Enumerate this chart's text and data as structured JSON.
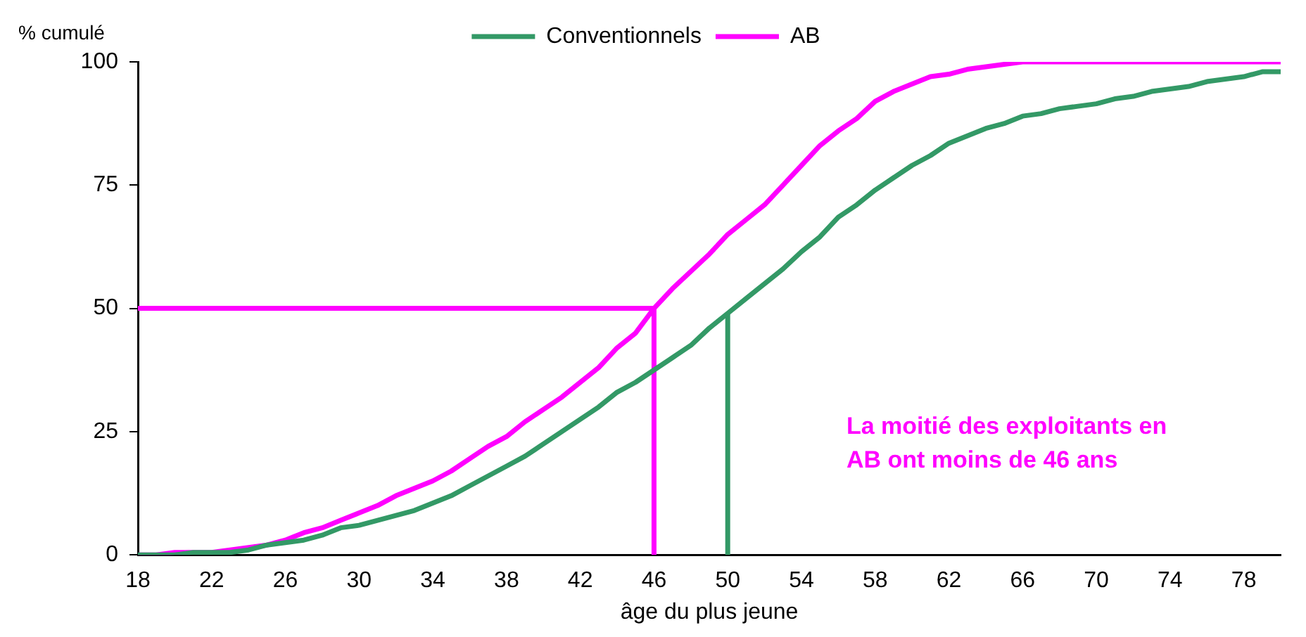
{
  "chart_data": {
    "type": "line",
    "xlabel": "âge du plus jeune",
    "ylabel": "% cumulé",
    "xlim": [
      18,
      80
    ],
    "xticks": [
      18,
      22,
      26,
      30,
      34,
      38,
      42,
      46,
      50,
      54,
      58,
      62,
      66,
      70,
      74,
      78
    ],
    "ylim": [
      0,
      100
    ],
    "yticks": [
      0,
      25,
      50,
      75,
      100
    ],
    "grid": false,
    "legend": "top",
    "marker": "none",
    "line_style": "solid",
    "annotations": [
      "La moitié des exploitants en\nAB ont moins de 46 ans"
    ],
    "series": [
      {
        "name": "Conventionnels",
        "color": "#339966",
        "x": [
          18,
          19,
          20,
          21,
          22,
          23,
          24,
          25,
          26,
          27,
          28,
          29,
          30,
          31,
          32,
          33,
          34,
          35,
          36,
          37,
          38,
          39,
          40,
          41,
          42,
          43,
          44,
          45,
          46,
          47,
          48,
          49,
          50,
          51,
          52,
          53,
          54,
          55,
          56,
          57,
          58,
          59,
          60,
          61,
          62,
          63,
          64,
          65,
          66,
          67,
          68,
          69,
          70,
          71,
          72,
          73,
          74,
          75,
          76,
          77,
          78,
          79,
          80
        ],
        "values": [
          0,
          0,
          0,
          0.5,
          0.5,
          0.5,
          1,
          2,
          2.5,
          3,
          4,
          5.5,
          6,
          7,
          8,
          9,
          10.5,
          12,
          14,
          16,
          18,
          20,
          22.5,
          25,
          27.5,
          30,
          33,
          35,
          37.5,
          40,
          42.5,
          46,
          49,
          52,
          55,
          58,
          61.5,
          64.5,
          68.5,
          71,
          74,
          76.5,
          79,
          81,
          83.5,
          85,
          86.5,
          87.5,
          89,
          89.5,
          90.5,
          91,
          91.5,
          92.5,
          93,
          94,
          94.5,
          95,
          96,
          96.5,
          97,
          98,
          98
        ]
      },
      {
        "name": "AB",
        "color": "#ff00ff",
        "x": [
          18,
          19,
          20,
          21,
          22,
          23,
          24,
          25,
          26,
          27,
          28,
          29,
          30,
          31,
          32,
          33,
          34,
          35,
          36,
          37,
          38,
          39,
          40,
          41,
          42,
          43,
          44,
          45,
          46,
          47,
          48,
          49,
          50,
          51,
          52,
          53,
          54,
          55,
          56,
          57,
          58,
          59,
          60,
          61,
          62,
          63,
          64,
          65,
          66,
          70,
          73,
          80
        ],
        "values": [
          0,
          0,
          0.5,
          0.5,
          0.5,
          1,
          1.5,
          2,
          3,
          4.5,
          5.5,
          7,
          8.5,
          10,
          12,
          13.5,
          15,
          17,
          19.5,
          22,
          24,
          27,
          29.5,
          32,
          35,
          38,
          42,
          45,
          50,
          54,
          57.5,
          61,
          65,
          68,
          71,
          75,
          79,
          83,
          86,
          88.5,
          92,
          94,
          95.5,
          97,
          97.5,
          98.5,
          99,
          99.5,
          100,
          100,
          100,
          100
        ]
      },
      {
        "color": "#ff00ff",
        "x": [
          18,
          46,
          46
        ],
        "values": [
          50,
          50,
          0
        ]
      },
      {
        "color": "#339966",
        "x": [
          50,
          50
        ],
        "values": [
          0,
          49
        ]
      }
    ]
  }
}
